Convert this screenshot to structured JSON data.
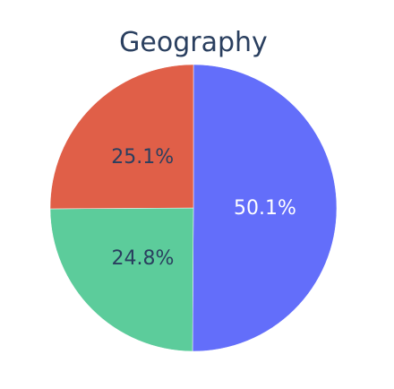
{
  "chart_data": {
    "type": "pie",
    "title": "Geography",
    "labels_shown": "percent",
    "sort": "clockwise-from-top",
    "slices": [
      {
        "percent": 50.1,
        "label": "50.1%",
        "color": "#636efa",
        "text_color": "#ffffff"
      },
      {
        "percent": 24.8,
        "label": "24.8%",
        "color": "#5ccc9b",
        "text_color": "#2a3f5f"
      },
      {
        "percent": 25.1,
        "label": "25.1%",
        "color": "#e05f48",
        "text_color": "#2a3f5f"
      }
    ]
  }
}
